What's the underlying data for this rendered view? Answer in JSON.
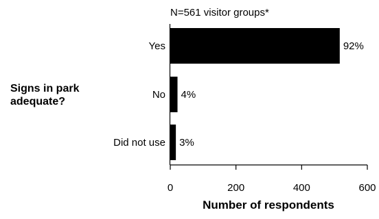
{
  "chart_data": {
    "type": "bar",
    "orientation": "horizontal",
    "annotation": "N=561 visitor groups*",
    "group_label": "Signs in park adequate?",
    "categories": [
      "Yes",
      "No",
      "Did not use"
    ],
    "values": [
      516,
      22,
      17
    ],
    "data_labels": [
      "92%",
      "4%",
      "3%"
    ],
    "xlabel": "Number of respondents",
    "ylabel": "",
    "xlim": [
      0,
      600
    ],
    "x_ticks": [
      "0",
      "200",
      "400",
      "600"
    ],
    "grid": false,
    "bar_color": "#000000"
  }
}
